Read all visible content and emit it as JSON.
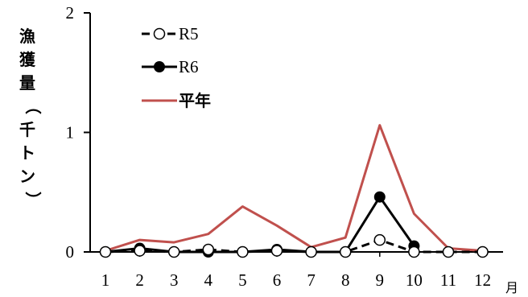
{
  "chart_data": {
    "type": "line",
    "ylabel_chars": [
      "漁",
      "獲",
      "量",
      "（",
      "千",
      "ト",
      "ン",
      "）"
    ],
    "xlabel": "月",
    "categories": [
      "1",
      "2",
      "3",
      "4",
      "5",
      "6",
      "7",
      "8",
      "9",
      "10",
      "11",
      "12"
    ],
    "ylim": [
      0,
      2
    ],
    "yticks": [
      "0",
      "1",
      "2"
    ],
    "grid": false,
    "legend_position": "top-left",
    "series": [
      {
        "name": "R5",
        "values": [
          0.0,
          0.01,
          0.0,
          0.02,
          0.0,
          0.01,
          0.0,
          0.0,
          0.1,
          0.0,
          0.0,
          0.0
        ],
        "color": "#000000",
        "style": "dashed",
        "marker": "open-circle"
      },
      {
        "name": "R6",
        "values": [
          0.0,
          0.03,
          0.0,
          0.0,
          0.0,
          0.02,
          0.0,
          0.0,
          0.46,
          0.05,
          null,
          null
        ],
        "color": "#000000",
        "style": "solid",
        "marker": "filled-circle"
      },
      {
        "name": "平年",
        "values": [
          0.01,
          0.1,
          0.08,
          0.15,
          0.38,
          0.22,
          0.04,
          0.12,
          1.06,
          0.32,
          0.03,
          0.01
        ],
        "color": "#c0504d",
        "style": "solid",
        "marker": "none"
      }
    ]
  }
}
